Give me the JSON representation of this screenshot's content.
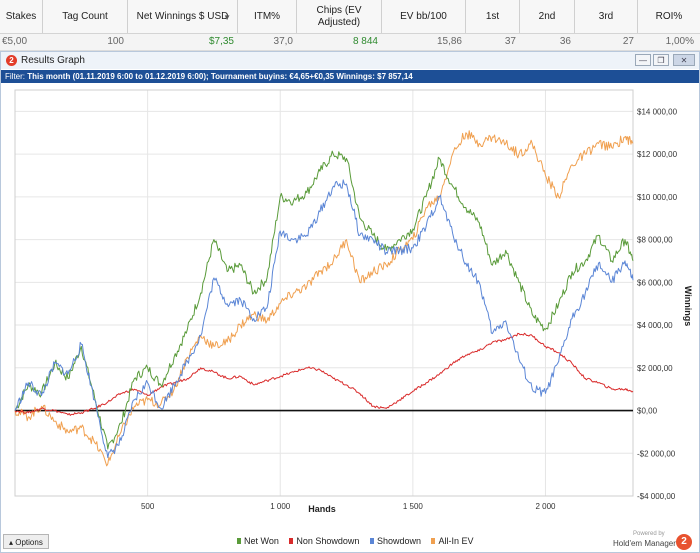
{
  "stats_table": {
    "columns": [
      {
        "label": "Stakes"
      },
      {
        "label": "Tag Count"
      },
      {
        "label": "Net Winnings $ USD"
      },
      {
        "label": "ITM%"
      },
      {
        "label": "Chips (EV Adjusted)"
      },
      {
        "label": "EV bb/100"
      },
      {
        "label": "1st"
      },
      {
        "label": "2nd"
      },
      {
        "label": "3rd"
      },
      {
        "label": "ROI%"
      }
    ],
    "sort_indicator": "▼",
    "row": {
      "stakes": "€5,00",
      "tag_count": "100",
      "net_winnings": "$7,35",
      "itm": "37,0",
      "chips_ev": "8 844",
      "ev_bb100": "15,86",
      "first": "37",
      "second": "36",
      "third": "27",
      "roi": "1,00%"
    }
  },
  "window": {
    "title": "Results Graph",
    "app_icon_glyph": "2",
    "minimize_glyph": "—",
    "restore_glyph": "❐",
    "close_glyph": "✕",
    "filter_label": "Filter:",
    "filter_text": "This month (01.11.2019 6:00 to 01.12.2019 6:00); Tournament buyins: €4,65+€0,35  Winnings: $7 857,14"
  },
  "footer": {
    "options_label": "Options",
    "options_icon": "caret-up-icon",
    "powered_by": "Powered by",
    "brand": "Hold'em Manager",
    "brand_logo_glyph": "2"
  },
  "colors": {
    "net_won": "#5a9b3a",
    "non_showdown": "#d92b2b",
    "showdown": "#5b86d6",
    "all_in_ev": "#f0a050",
    "filter_bar": "#1d4f96"
  },
  "chart_data": {
    "type": "line",
    "xlabel": "Hands",
    "ylabel": "Winnings",
    "xlim": [
      0,
      2330
    ],
    "ylim": [
      -4000,
      15000
    ],
    "xticks": [
      500,
      1000,
      1500,
      2000
    ],
    "xtick_labels": [
      "500",
      "1 000",
      "1 500",
      "2 000"
    ],
    "yticks": [
      -4000,
      -2000,
      0,
      2000,
      4000,
      6000,
      8000,
      10000,
      12000,
      14000
    ],
    "ytick_labels": [
      "-$4 000,00",
      "-$2 000,00",
      "$0,00",
      "$2 000,00",
      "$4 000,00",
      "$6 000,00",
      "$8 000,00",
      "$10 000,00",
      "$12 000,00",
      "$14 000,00"
    ],
    "grid": true,
    "legend_position": "bottom",
    "series": [
      {
        "name": "Net Won",
        "x": [
          0,
          50,
          100,
          150,
          200,
          250,
          300,
          350,
          400,
          450,
          500,
          550,
          600,
          650,
          700,
          750,
          800,
          850,
          900,
          950,
          1000,
          1050,
          1100,
          1150,
          1200,
          1250,
          1300,
          1350,
          1400,
          1450,
          1500,
          1550,
          1600,
          1650,
          1700,
          1750,
          1800,
          1850,
          1900,
          1950,
          2000,
          2050,
          2100,
          2150,
          2200,
          2250,
          2300,
          2330
        ],
        "y": [
          0,
          1200,
          800,
          2200,
          1500,
          3000,
          600,
          -1800,
          -600,
          1500,
          2000,
          1200,
          2500,
          3800,
          5500,
          8000,
          6500,
          6800,
          5500,
          6200,
          10000,
          9800,
          10200,
          11200,
          12000,
          11800,
          9000,
          8200,
          7500,
          8000,
          8500,
          10000,
          11800,
          10500,
          9500,
          8800,
          6800,
          7500,
          6000,
          4500,
          3800,
          5000,
          6500,
          7000,
          8200,
          7000,
          8000,
          7000
        ]
      },
      {
        "name": "Non Showdown",
        "x": [
          0,
          50,
          100,
          150,
          200,
          250,
          300,
          350,
          400,
          450,
          500,
          550,
          600,
          650,
          700,
          750,
          800,
          850,
          900,
          950,
          1000,
          1050,
          1100,
          1150,
          1200,
          1250,
          1300,
          1350,
          1400,
          1450,
          1500,
          1550,
          1600,
          1650,
          1700,
          1750,
          1800,
          1850,
          1900,
          1950,
          2000,
          2050,
          2100,
          2150,
          2200,
          2250,
          2300,
          2330
        ],
        "y": [
          0,
          -100,
          100,
          0,
          -200,
          -100,
          100,
          400,
          800,
          1000,
          700,
          1100,
          1300,
          1500,
          2000,
          1800,
          1500,
          1600,
          1200,
          1400,
          1600,
          1800,
          2000,
          1900,
          1500,
          1200,
          800,
          200,
          100,
          500,
          900,
          1300,
          1700,
          2200,
          2600,
          2800,
          3200,
          3300,
          3600,
          3500,
          3000,
          2700,
          2200,
          1500,
          1300,
          1000,
          1000,
          900
        ]
      },
      {
        "name": "Showdown",
        "x": [
          0,
          50,
          100,
          150,
          200,
          250,
          300,
          350,
          400,
          450,
          500,
          550,
          600,
          650,
          700,
          750,
          800,
          850,
          900,
          950,
          1000,
          1050,
          1100,
          1150,
          1200,
          1250,
          1300,
          1350,
          1400,
          1450,
          1500,
          1550,
          1600,
          1650,
          1700,
          1750,
          1800,
          1850,
          1900,
          1950,
          2000,
          2050,
          2100,
          2150,
          2200,
          2250,
          2300,
          2330
        ],
        "y": [
          0,
          1300,
          700,
          2200,
          1700,
          3100,
          500,
          -2200,
          -1400,
          500,
          1300,
          100,
          1200,
          2300,
          3500,
          6200,
          5000,
          5200,
          4300,
          4800,
          8400,
          8000,
          8200,
          9300,
          10500,
          10600,
          8200,
          8000,
          7400,
          7500,
          7600,
          8600,
          10000,
          8300,
          6900,
          6000,
          3600,
          4200,
          2400,
          1000,
          800,
          2300,
          4300,
          5500,
          6900,
          6000,
          7000,
          6100
        ]
      },
      {
        "name": "All-In EV",
        "x": [
          0,
          50,
          100,
          150,
          200,
          250,
          300,
          350,
          400,
          450,
          500,
          550,
          600,
          650,
          700,
          750,
          800,
          850,
          900,
          950,
          1000,
          1050,
          1100,
          1150,
          1200,
          1250,
          1300,
          1350,
          1400,
          1450,
          1500,
          1550,
          1600,
          1650,
          1700,
          1750,
          1800,
          1850,
          1900,
          1950,
          2000,
          2050,
          2100,
          2150,
          2200,
          2250,
          2300,
          2330
        ],
        "y": [
          0,
          -300,
          200,
          -500,
          -1000,
          -800,
          -1500,
          -2500,
          -1000,
          200,
          500,
          300,
          1000,
          2500,
          3500,
          3000,
          3200,
          4000,
          4500,
          4200,
          5000,
          5500,
          5800,
          6500,
          7000,
          8000,
          6000,
          6500,
          6800,
          7500,
          8000,
          9500,
          10000,
          12000,
          13000,
          12500,
          12800,
          12500,
          12000,
          12500,
          11000,
          10000,
          11500,
          12000,
          12500,
          12300,
          12800,
          12500
        ]
      }
    ]
  }
}
